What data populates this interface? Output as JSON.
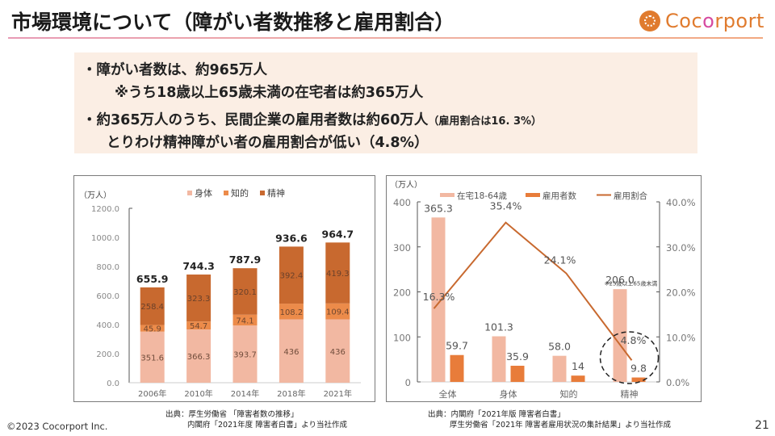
{
  "header": {
    "title": "市場環境について（障がい者数推移と雇用割合）",
    "logo": {
      "name_part1": "Coc",
      "name_part2": "o",
      "name_part3": "rport",
      "brand_color": "#e07b2e",
      "accent_color": "#d64aa0"
    }
  },
  "summary": {
    "lines": [
      "・障がい者数は、約965万人",
      "※うち18歳以上65歳未満の在宅者は約365万人",
      "・約365万人のうち、民間企業の雇用者数は約60万人",
      "（雇用割合は16. 3%）",
      "とりわけ精神障がい者の雇用割合が低い（4.8%）"
    ]
  },
  "chart_data": [
    {
      "type": "bar",
      "stacked": true,
      "unit_label": "（万人）",
      "categories": [
        "2006年",
        "2010年",
        "2014年",
        "2018年",
        "2021年"
      ],
      "series": [
        {
          "name": "身体",
          "color": "#f2b8a2",
          "values": [
            351.6,
            366.3,
            393.7,
            436,
            436
          ],
          "labels": [
            "351.6",
            "366.3",
            "393.7",
            "436",
            "436"
          ]
        },
        {
          "name": "知的",
          "color": "#ec8b4a",
          "values": [
            45.9,
            54.7,
            74.1,
            108.2,
            109.4
          ],
          "labels": [
            "45.9",
            "54.7",
            "74.1",
            "108.2",
            "109.4"
          ]
        },
        {
          "name": "精神",
          "color": "#c8692f",
          "values": [
            258.4,
            323.3,
            320.1,
            392.4,
            419.3
          ],
          "labels": [
            "258.4",
            "323.3",
            "320.1",
            "392.4",
            "419.3"
          ]
        }
      ],
      "totals": [
        "655.9",
        "744.3",
        "787.9",
        "936.6",
        "964.7"
      ],
      "yticks": [
        "0.0",
        "200.0",
        "400.0",
        "600.0",
        "800.0",
        "1000.0",
        "1200.0"
      ],
      "ylim": [
        0,
        1200
      ],
      "legend": "top",
      "title": "",
      "xlabel": "",
      "ylabel": "（万人）"
    },
    {
      "type": "bar+line",
      "unit_label": "（万人）",
      "categories": [
        "全体",
        "身体",
        "知的",
        "精神"
      ],
      "series": [
        {
          "name": "在宅18-64歳",
          "kind": "bar",
          "color": "#f2b8a2",
          "values": [
            365.3,
            101.3,
            58.0,
            206.0
          ],
          "labels": [
            "365.3",
            "101.3",
            "58.0",
            "206.0"
          ]
        },
        {
          "name": "雇用者数",
          "kind": "bar",
          "color": "#e87c3a",
          "values": [
            59.7,
            35.9,
            14,
            9.8
          ],
          "labels": [
            "59.7",
            "35.9",
            "14",
            "9.8"
          ]
        },
        {
          "name": "雇用割合",
          "kind": "line",
          "axis": "right",
          "color": "#c8692f",
          "values": [
            16.3,
            35.4,
            24.1,
            4.8
          ],
          "labels": [
            "16.3%",
            "35.4%",
            "24.1%",
            "4.8%"
          ]
        }
      ],
      "yticks_left": [
        "0",
        "100",
        "200",
        "300",
        "400"
      ],
      "ylim_left": [
        0,
        400
      ],
      "yticks_right": [
        "0.0%",
        "10.0%",
        "20.0%",
        "30.0%",
        "40.0%"
      ],
      "ylim_right": [
        0,
        40
      ],
      "annotation": "※25歳以上65歳未満",
      "highlight": "精神",
      "legend": "top",
      "title": "",
      "xlabel": "",
      "ylabel": "（万人）"
    }
  ],
  "sources": {
    "left_line1": "出典：厚生労働省 「障害者数の推移」",
    "left_line2": "内閣府「2021年度  障害者白書」より当社作成",
    "right_line1": "出典：内閣府「2021年版  障害者白書」",
    "right_line2": "厚生労働省「2021年 障害者雇用状況の集計結果」より当社作成"
  },
  "footer": {
    "copyright": "©2023 Cocorport Inc.",
    "page_number": "21"
  }
}
